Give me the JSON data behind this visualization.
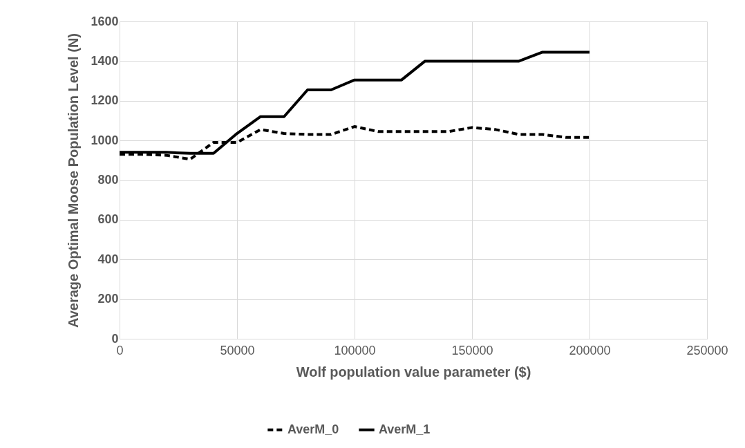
{
  "chart_data": {
    "type": "line",
    "xlabel": "Wolf population value parameter ($)",
    "ylabel": "Average Optimal Moose Population Level (N)",
    "x": [
      0,
      10000,
      20000,
      30000,
      40000,
      50000,
      60000,
      70000,
      80000,
      90000,
      100000,
      110000,
      120000,
      130000,
      140000,
      150000,
      160000,
      170000,
      180000,
      190000,
      200000
    ],
    "series": [
      {
        "name": "AverM_0",
        "color": "#000000",
        "line_style": "dashed",
        "values": [
          930,
          930,
          925,
          905,
          990,
          990,
          1055,
          1035,
          1030,
          1030,
          1070,
          1045,
          1045,
          1045,
          1045,
          1065,
          1055,
          1030,
          1030,
          1015,
          1015
        ]
      },
      {
        "name": "AverM_1",
        "color": "#000000",
        "line_style": "solid",
        "values": [
          940,
          940,
          940,
          935,
          935,
          1035,
          1120,
          1120,
          1255,
          1255,
          1305,
          1305,
          1305,
          1400,
          1400,
          1400,
          1400,
          1400,
          1445,
          1445,
          1445
        ]
      }
    ],
    "xlim": [
      0,
      250000
    ],
    "xticks": [
      0,
      50000,
      100000,
      150000,
      200000,
      250000
    ],
    "ylim": [
      0,
      1600
    ],
    "yticks": [
      0,
      200,
      400,
      600,
      800,
      1000,
      1200,
      1400,
      1600
    ],
    "grid": true,
    "legend": "bottom",
    "marker": "none"
  }
}
